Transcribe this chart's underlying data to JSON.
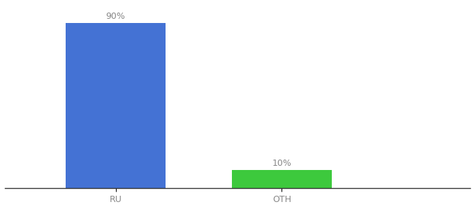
{
  "categories": [
    "RU",
    "OTH"
  ],
  "values": [
    90,
    10
  ],
  "bar_colors": [
    "#4472D4",
    "#3DC93D"
  ],
  "label_texts": [
    "90%",
    "10%"
  ],
  "background_color": "#ffffff",
  "bar_width": 0.18,
  "ylim": [
    0,
    100
  ],
  "label_fontsize": 9,
  "tick_fontsize": 9,
  "x_positions": [
    0.28,
    0.58
  ]
}
